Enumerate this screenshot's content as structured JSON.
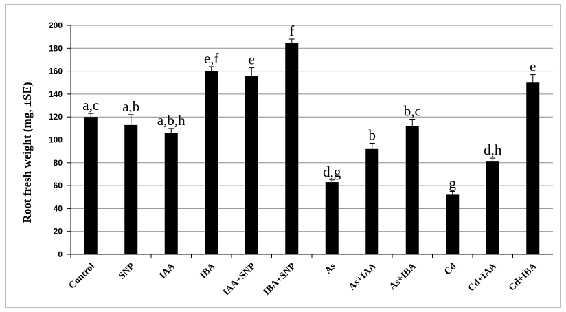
{
  "chart_data": {
    "type": "bar",
    "title": "",
    "xlabel": "",
    "ylabel": "Root fresh weight (mg, ±SE)",
    "ylim": [
      0,
      200
    ],
    "yticks": [
      0,
      20,
      40,
      60,
      80,
      100,
      120,
      140,
      160,
      180,
      200
    ],
    "grid": true,
    "bar_color": "#000000",
    "grid_color": "#8c8c8c",
    "categories": [
      "Control",
      "SNP",
      "IAA",
      "IBA",
      "IAA+SNP",
      "IBA+SNP",
      "As",
      "As+IAA",
      "As+IBA",
      "Cd",
      "Cd+IAA",
      "Cd+IBA"
    ],
    "values": [
      120,
      113,
      106,
      160,
      156,
      185,
      63,
      92,
      112,
      52,
      81,
      150
    ],
    "errors": [
      3,
      9,
      4,
      4,
      7,
      3,
      2,
      5,
      6,
      3,
      3,
      7
    ],
    "significance_labels": [
      "a,c",
      "a,b",
      "a,b,h",
      "e,f",
      "e",
      "f",
      "d,g",
      "b",
      "b,c",
      "g",
      "d,h",
      "e"
    ]
  }
}
